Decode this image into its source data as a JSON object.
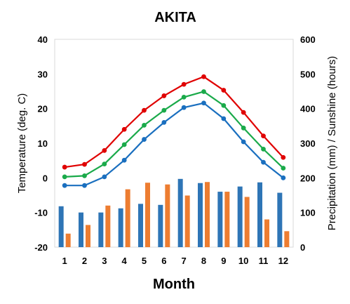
{
  "chart_data": {
    "type": "bar+line",
    "title": "AKITA",
    "xlabel": "Month",
    "ylabel_left": "Temperature (deg. C)",
    "ylabel_right": "Precipitation (mm) / Sunshine (hours)",
    "categories": [
      "1",
      "2",
      "3",
      "4",
      "5",
      "6",
      "7",
      "8",
      "9",
      "10",
      "11",
      "12"
    ],
    "ylim_left": [
      -20,
      40
    ],
    "yticks_left": [
      "-20",
      "-10",
      "0",
      "10",
      "20",
      "30",
      "40"
    ],
    "ylim_right": [
      0,
      600
    ],
    "yticks_right": [
      "0",
      "100",
      "200",
      "300",
      "400",
      "500",
      "600"
    ],
    "grid": false,
    "legend": "none",
    "bar_series": [
      {
        "color": "#2e75b6",
        "values": [
          118,
          100,
          100,
          112,
          125,
          122,
          197,
          185,
          160,
          175,
          187,
          157
        ]
      },
      {
        "color": "#ed7d31",
        "values": [
          39,
          64,
          120,
          167,
          186,
          181,
          149,
          188,
          160,
          145,
          80,
          46
        ]
      }
    ],
    "line_series": [
      {
        "color": "#e00000",
        "values": [
          3.1,
          3.9,
          7.9,
          14.0,
          19.5,
          23.7,
          27.0,
          29.2,
          25.3,
          18.9,
          12.1,
          5.9
        ]
      },
      {
        "color": "#1aaa4a",
        "values": [
          0.3,
          0.6,
          4.0,
          9.6,
          15.2,
          19.5,
          23.3,
          24.9,
          20.9,
          14.4,
          8.3,
          2.8
        ]
      },
      {
        "color": "#1a6fbf",
        "values": [
          -2.2,
          -2.2,
          0.3,
          5.1,
          11.1,
          16.0,
          20.3,
          21.6,
          17.1,
          10.4,
          4.5,
          0.0
        ]
      }
    ]
  }
}
